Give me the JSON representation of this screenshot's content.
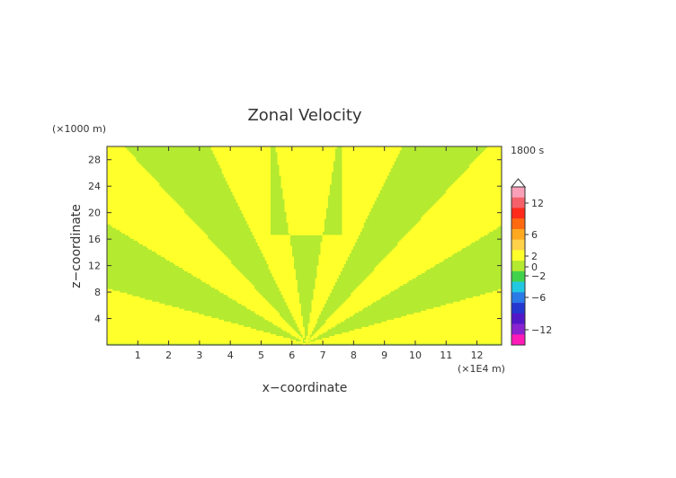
{
  "chart_data": {
    "type": "heatmap",
    "title": "Zonal Velocity",
    "xlabel": "x−coordinate",
    "ylabel": "z−coordinate",
    "x_unit": "(×1E4 m)",
    "y_unit": "(×1000 m)",
    "time_label": "1800 s",
    "xlim": [
      0,
      12.8
    ],
    "ylim": [
      0,
      30
    ],
    "x_ticks": [
      "1",
      "2",
      "3",
      "4",
      "5",
      "6",
      "7",
      "8",
      "9",
      "10",
      "11",
      "12"
    ],
    "y_ticks": [
      "4",
      "8",
      "12",
      "16",
      "20",
      "24",
      "28"
    ],
    "colorbar": {
      "tick_labels": [
        "12",
        "6",
        "2",
        "0",
        "−2",
        "−6",
        "−12"
      ],
      "colors": [
        "#f9a0b8",
        "#f4616a",
        "#ff2a1a",
        "#ff6a10",
        "#ffa820",
        "#ffd24a",
        "#ffff2b",
        "#b4ea30",
        "#41d24c",
        "#22c8e0",
        "#2a7ae8",
        "#2438d0",
        "#5218c8",
        "#8a22d0",
        "#ff1ab8"
      ]
    },
    "field_colors": {
      "positive": "#ffff2b",
      "negative": "#b4ea30"
    },
    "field_pattern": "alternating bands of weak positive (0 to 2) and weak negative (−2 to 0) zonal velocity radiating upward from a source at x≈6.4, z≈0"
  }
}
